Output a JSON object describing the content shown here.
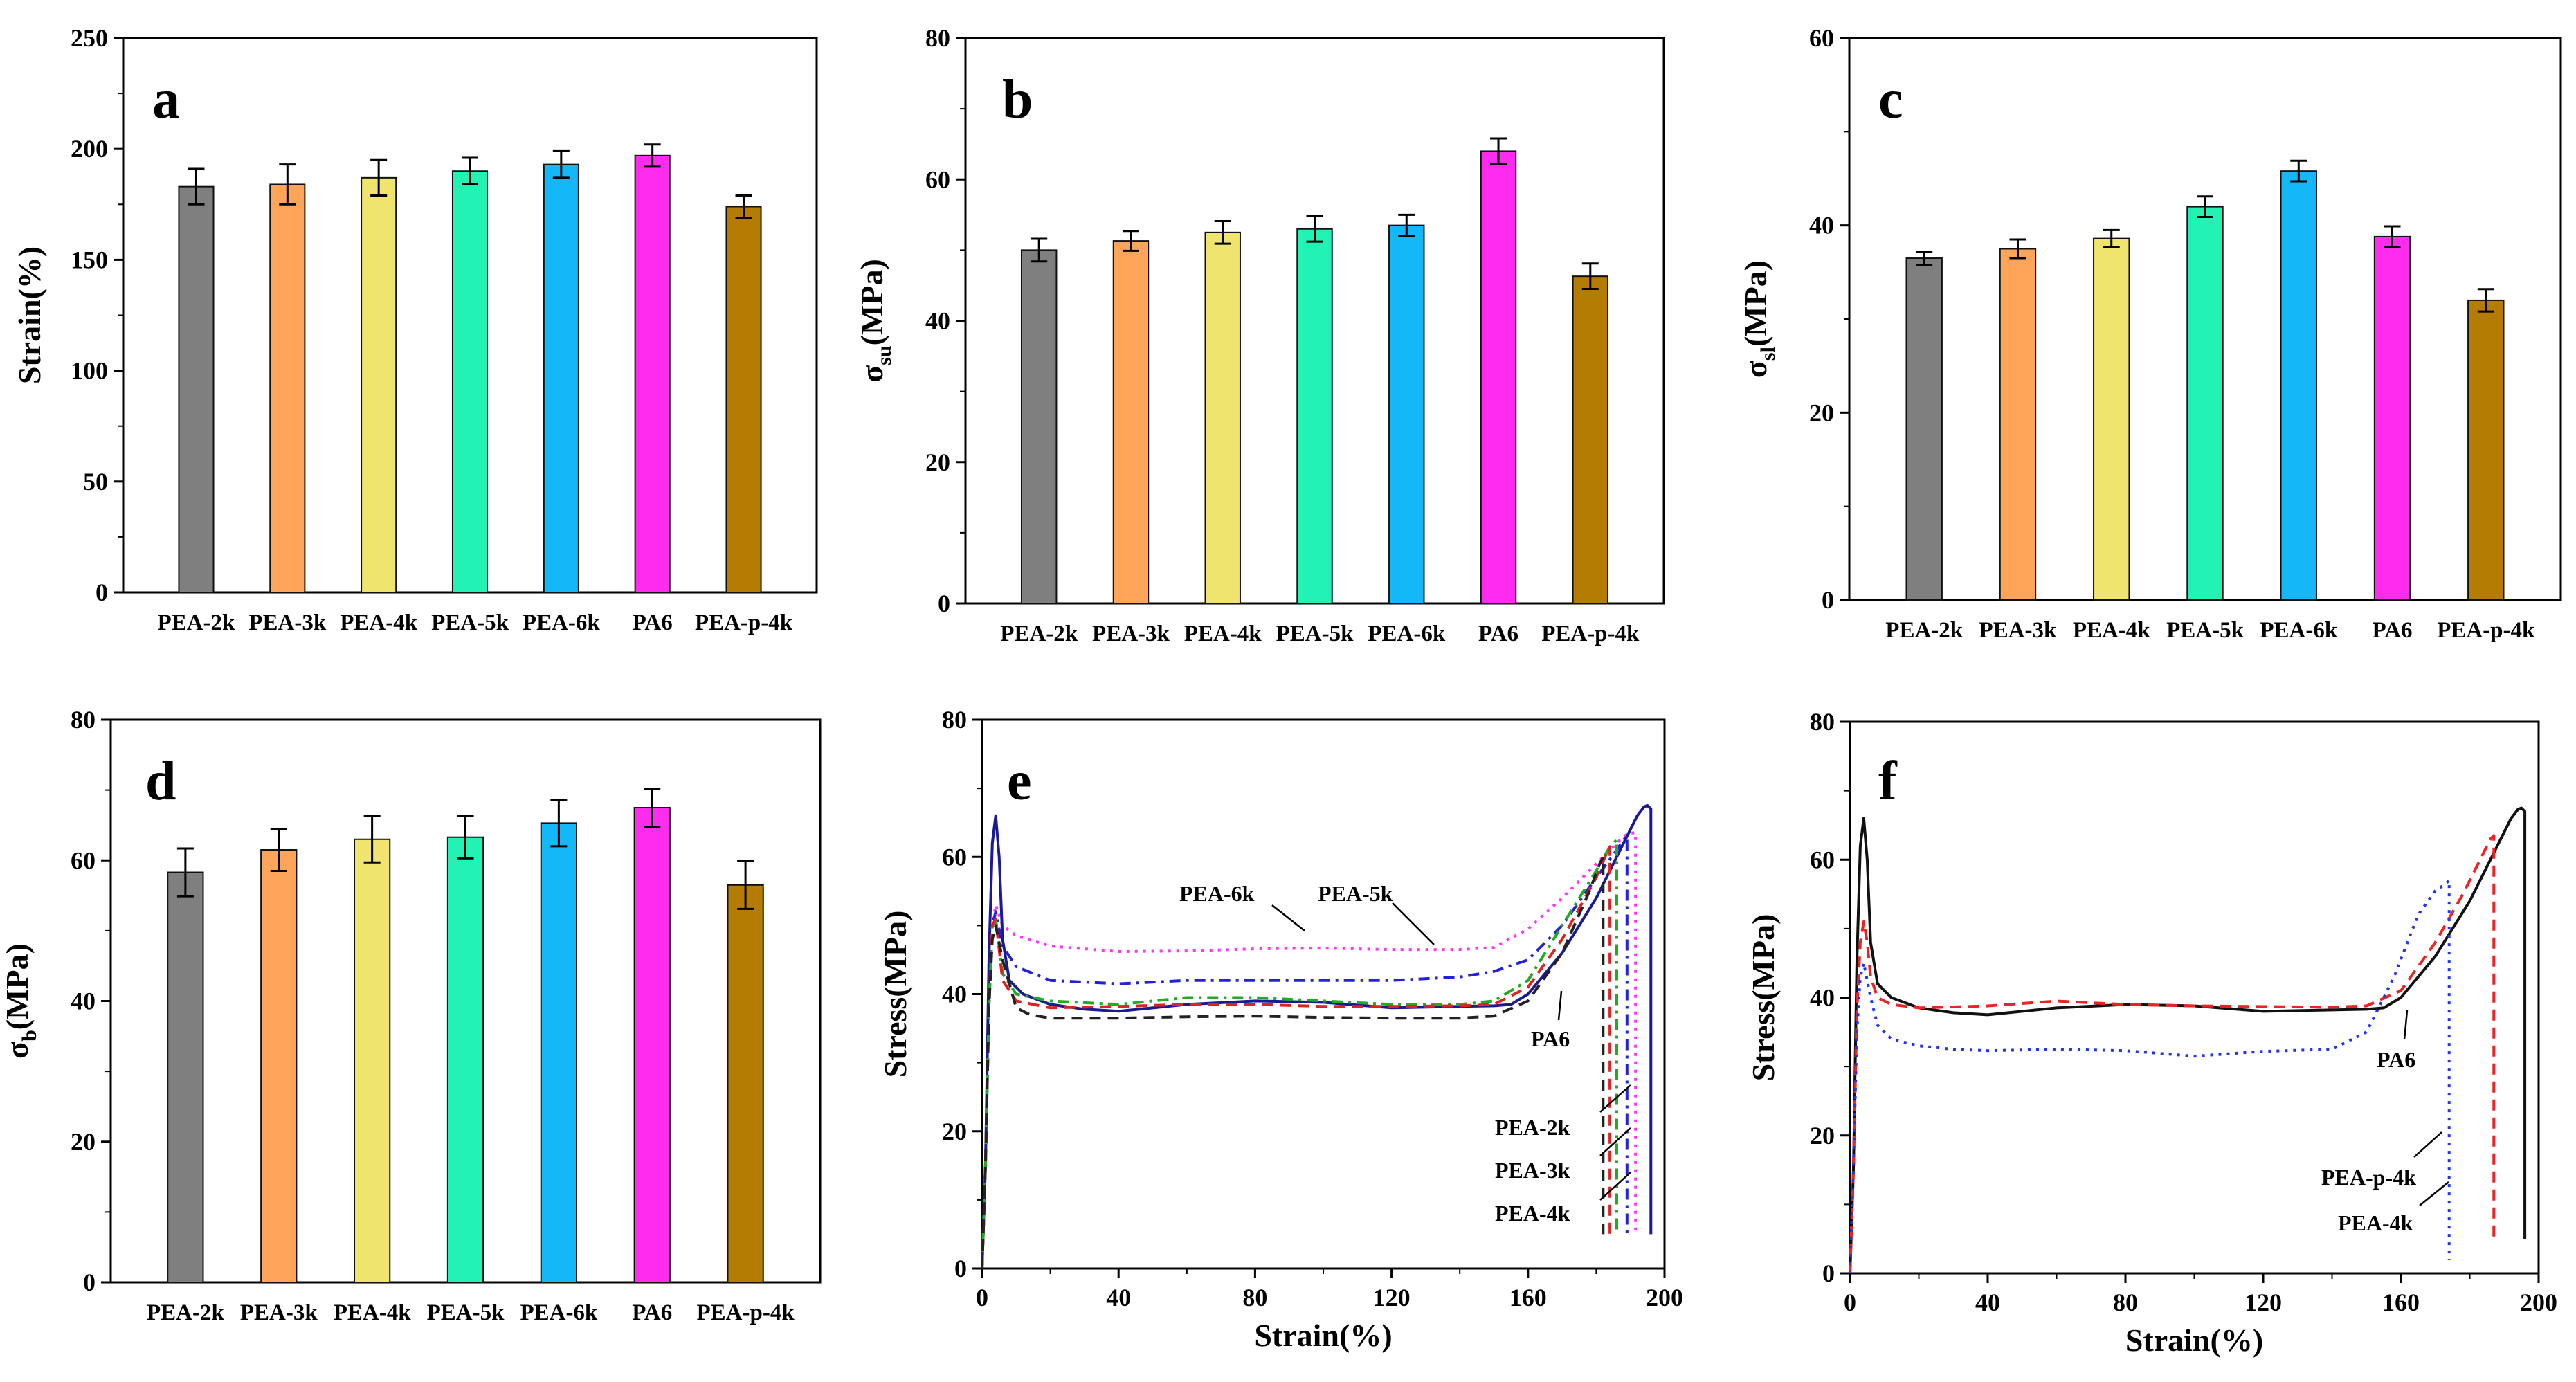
{
  "figure": "Mechanical property charts (a-f)",
  "colors": {
    "PEA-2k": "#7f7f7f",
    "PEA-3k": "#ffa55a",
    "PEA-4k": "#eee46e",
    "PEA-5k": "#22f2b4",
    "PEA-6k": "#14b8f8",
    "PA6": "#ff2cf0",
    "PEA-p-4k": "#b57c03"
  },
  "chart_data": [
    {
      "type": "bar",
      "panel": "a",
      "letter": "a",
      "ylabel": "Strain(%)",
      "ylabel_main": "Strain(%)",
      "ylabel_sub": "",
      "ylim": [
        0,
        250
      ],
      "yticks": [
        0,
        50,
        100,
        150,
        200,
        250
      ],
      "categories": [
        "PEA-2k",
        "PEA-3k",
        "PEA-4k",
        "PEA-5k",
        "PEA-6k",
        "PA6",
        "PEA-p-4k"
      ],
      "values": [
        183,
        184,
        187,
        190,
        193,
        197,
        174
      ],
      "errors": [
        8,
        9,
        8,
        6,
        6,
        5,
        5
      ]
    },
    {
      "type": "bar",
      "panel": "b",
      "letter": "b",
      "ylabel": "σsu(MPa)",
      "ylabel_main": "σ",
      "ylabel_sub": "su",
      "ylabel_tail": "(MPa)",
      "ylim": [
        0,
        80
      ],
      "yticks": [
        0,
        20,
        40,
        60,
        80
      ],
      "categories": [
        "PEA-2k",
        "PEA-3k",
        "PEA-4k",
        "PEA-5k",
        "PEA-6k",
        "PA6",
        "PEA-p-4k"
      ],
      "values": [
        50,
        51.3,
        52.5,
        53,
        53.5,
        64,
        46.3
      ],
      "errors": [
        1.6,
        1.4,
        1.6,
        1.8,
        1.5,
        1.8,
        1.8
      ]
    },
    {
      "type": "bar",
      "panel": "c",
      "letter": "c",
      "ylabel": "σsl(MPa)",
      "ylabel_main": "σ",
      "ylabel_sub": "sl",
      "ylabel_tail": "(MPa)",
      "ylim": [
        0,
        60
      ],
      "yticks": [
        0,
        20,
        40,
        60
      ],
      "categories": [
        "PEA-2k",
        "PEA-3k",
        "PEA-4k",
        "PEA-5k",
        "PEA-6k",
        "PA6",
        "PEA-p-4k"
      ],
      "values": [
        36.5,
        37.5,
        38.6,
        42,
        45.8,
        38.8,
        32
      ],
      "errors": [
        0.7,
        1.0,
        0.9,
        1.1,
        1.1,
        1.1,
        1.2
      ]
    },
    {
      "type": "bar",
      "panel": "d",
      "letter": "d",
      "ylabel": "σb(MPa)",
      "ylabel_main": "σ",
      "ylabel_sub": "b",
      "ylabel_tail": "(MPa)",
      "ylim": [
        0,
        80
      ],
      "yticks": [
        0,
        20,
        40,
        60,
        80
      ],
      "categories": [
        "PEA-2k",
        "PEA-3k",
        "PEA-4k",
        "PEA-5k",
        "PEA-6k",
        "PA6",
        "PEA-p-4k"
      ],
      "values": [
        58.3,
        61.5,
        63,
        63.3,
        65.3,
        67.5,
        56.5
      ],
      "errors": [
        3.4,
        3.0,
        3.3,
        3.0,
        3.3,
        2.7,
        3.4
      ]
    },
    {
      "type": "line",
      "panel": "e",
      "letter": "e",
      "xlabel": "Strain(%)",
      "ylabel": "Stress(MPa)",
      "xlim": [
        0,
        200
      ],
      "ylim": [
        0,
        80
      ],
      "xticks": [
        0,
        40,
        80,
        120,
        160,
        200
      ],
      "yticks": [
        0,
        20,
        40,
        60,
        80
      ],
      "series": [
        {
          "name": "PEA-6k",
          "color": "#ff33ff",
          "dash": "dot",
          "x": [
            0,
            1,
            2,
            3,
            4,
            6,
            10,
            20,
            40,
            60,
            80,
            100,
            120,
            140,
            150,
            160,
            170,
            180,
            186,
            188,
            190,
            191.5,
            191.5
          ],
          "y": [
            0,
            15,
            38,
            50,
            53,
            50,
            48.5,
            47,
            46.2,
            46.3,
            46.6,
            46.7,
            46.5,
            46.5,
            46.8,
            49.5,
            54,
            59,
            62,
            63,
            63.5,
            63.5,
            5
          ]
        },
        {
          "name": "PEA-5k",
          "color": "#2222dd",
          "dash": "dashdot",
          "x": [
            0,
            1,
            2,
            3,
            4,
            6,
            10,
            20,
            40,
            60,
            80,
            100,
            120,
            140,
            150,
            160,
            170,
            180,
            186,
            188,
            189,
            189
          ],
          "y": [
            0,
            15,
            38,
            50,
            52,
            47,
            44,
            42,
            41.5,
            42,
            42,
            42,
            42,
            42.5,
            43.3,
            45,
            50,
            57,
            61,
            62.5,
            63,
            5
          ]
        },
        {
          "name": "PA6",
          "color": "#1a1a99",
          "dash": "solid",
          "x": [
            0,
            1,
            2,
            3,
            4,
            5,
            6,
            8,
            12,
            20,
            30,
            40,
            60,
            80,
            100,
            120,
            140,
            150,
            155,
            160,
            170,
            180,
            188,
            192,
            194,
            195,
            196,
            196
          ],
          "y": [
            0,
            15,
            45,
            62,
            66,
            60,
            48,
            42,
            40,
            38.5,
            37.8,
            37.5,
            38.5,
            39,
            38.8,
            38,
            38.2,
            38.3,
            38.5,
            40,
            46,
            54,
            62,
            66,
            67.3,
            67.5,
            67,
            5
          ]
        },
        {
          "name": "PEA-4k",
          "color": "#22aa22",
          "dash": "dashdot",
          "x": [
            0,
            1,
            2,
            3,
            4,
            6,
            10,
            20,
            40,
            60,
            80,
            100,
            120,
            140,
            150,
            160,
            170,
            180,
            184,
            186,
            186
          ],
          "y": [
            0,
            15,
            38,
            50,
            51,
            43,
            40,
            39,
            38.5,
            39.5,
            39.5,
            39,
            38.5,
            38.5,
            39,
            42,
            50,
            58,
            61.5,
            62.5,
            5
          ]
        },
        {
          "name": "PEA-3k",
          "color": "#dd2222",
          "dash": "dash",
          "x": [
            0,
            1,
            2,
            3,
            4,
            6,
            10,
            20,
            40,
            60,
            80,
            100,
            120,
            140,
            150,
            160,
            170,
            180,
            183,
            184,
            184
          ],
          "y": [
            0,
            15,
            38,
            50,
            51,
            42,
            39,
            38,
            38.2,
            38.5,
            38.5,
            38.2,
            38.2,
            38.3,
            38.5,
            41,
            48,
            57,
            60.5,
            61.5,
            5
          ]
        },
        {
          "name": "PEA-2k",
          "color": "#222222",
          "dash": "dash",
          "x": [
            0,
            1,
            2,
            3,
            4,
            6,
            10,
            14,
            20,
            40,
            60,
            80,
            100,
            120,
            140,
            150,
            160,
            170,
            178,
            181,
            182,
            182
          ],
          "y": [
            0,
            15,
            38,
            48,
            50,
            45,
            38,
            37,
            36.5,
            36.5,
            36.7,
            36.8,
            36.6,
            36.5,
            36.5,
            36.8,
            39,
            46,
            55,
            59,
            60,
            5
          ]
        }
      ],
      "annotations": [
        "PEA-6k",
        "PEA-5k",
        "PA6",
        "PEA-2k",
        "PEA-3k",
        "PEA-4k"
      ]
    },
    {
      "type": "line",
      "panel": "f",
      "letter": "f",
      "xlabel": "Strain(%)",
      "ylabel": "Stress(MPa)",
      "xlim": [
        0,
        200
      ],
      "ylim": [
        0,
        80
      ],
      "xticks": [
        0,
        40,
        80,
        120,
        160,
        200
      ],
      "yticks": [
        0,
        20,
        40,
        60,
        80
      ],
      "series": [
        {
          "name": "PA6",
          "color": "#111111",
          "dash": "solid",
          "x": [
            0,
            1,
            2,
            3,
            4,
            5,
            6,
            8,
            12,
            20,
            30,
            40,
            60,
            80,
            100,
            120,
            140,
            150,
            155,
            160,
            170,
            180,
            188,
            192,
            194,
            195,
            196,
            196
          ],
          "y": [
            0,
            15,
            45,
            62,
            66,
            60,
            48,
            42,
            40,
            38.5,
            37.8,
            37.5,
            38.5,
            39,
            38.8,
            38,
            38.2,
            38.3,
            38.5,
            40,
            46,
            54,
            62,
            66,
            67.3,
            67.5,
            67,
            5
          ]
        },
        {
          "name": "PEA-4k",
          "color": "#ee2222",
          "dash": "dash",
          "x": [
            0,
            1,
            2,
            3,
            4,
            5,
            6,
            8,
            12,
            20,
            40,
            60,
            80,
            100,
            120,
            140,
            150,
            160,
            170,
            178,
            184,
            186,
            187,
            187
          ],
          "y": [
            0,
            15,
            38,
            48,
            51,
            48,
            43,
            40,
            39,
            38.5,
            38.8,
            39.5,
            39,
            38.8,
            38.7,
            38.6,
            38.8,
            41,
            48,
            55,
            61,
            63,
            63.5,
            5
          ]
        },
        {
          "name": "PEA-p-4k",
          "color": "#2233ee",
          "dash": "dot",
          "x": [
            0,
            1,
            2,
            3,
            4,
            6,
            8,
            12,
            20,
            30,
            40,
            60,
            80,
            100,
            120,
            140,
            150,
            158,
            165,
            170,
            173,
            174,
            174
          ],
          "y": [
            0,
            15,
            35,
            43,
            45,
            40,
            36,
            34,
            33,
            32.5,
            32.3,
            32.5,
            32.3,
            31.5,
            32.2,
            32.5,
            35,
            43,
            52,
            55.5,
            56.5,
            57,
            2
          ]
        }
      ],
      "annotations": [
        "PA6",
        "PEA-p-4k",
        "PEA-4k"
      ]
    }
  ]
}
